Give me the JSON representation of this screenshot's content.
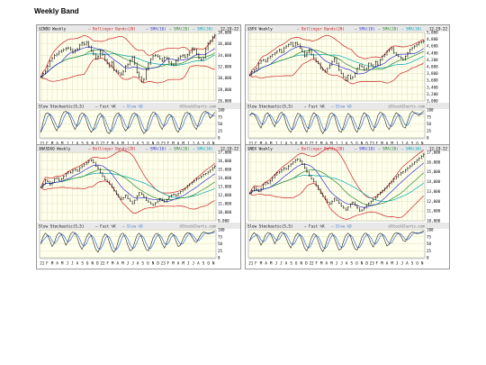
{
  "page": {
    "title": "Weekly Band"
  },
  "legend_labels": {
    "bollinger": "Bollinger Bands(20)",
    "sma10": "SMA(10)",
    "sma20": "SMA(20)",
    "sma30": "SMA(30)",
    "stoch_title": "Slow Stochastic(5,5)",
    "fast": "Fast %K",
    "slow": "Slow %D",
    "watermark": "©StockCharts.com"
  },
  "colors": {
    "price": "#000000",
    "sma10": "#3333cc",
    "sma20": "#2a8a2a",
    "sma30": "#00a8b0",
    "band": "#cc2222",
    "fast": "#222222",
    "slow": "#4a7fd0",
    "bg": "#ffffee",
    "grid": "#d8d8b0"
  },
  "chart_data": [
    {
      "type": "line",
      "symbol": "$INDU Weekly",
      "date": "12-19-22",
      "ylim": [
        26000,
        38000
      ],
      "yticks": [
        26000,
        28000,
        30000,
        32000,
        34000,
        36000,
        38000
      ],
      "ytick_labels": [
        "26,000",
        "28,000",
        "30,000",
        "32,000",
        "34,000",
        "36,000",
        "38,000"
      ],
      "xtick_labels": [
        "21",
        "F",
        "M",
        "A",
        "M",
        "J",
        "J",
        "A",
        "S",
        "O",
        "N",
        "D",
        "22",
        "F",
        "M",
        "A",
        "M",
        "J",
        "J",
        "A",
        "S",
        "O",
        "N",
        "D",
        "23",
        "F",
        "M",
        "A",
        "M",
        "J",
        "J",
        "A",
        "S",
        "O",
        "N"
      ],
      "series": [
        {
          "values": [
            30200,
            30800,
            31200,
            32100,
            33000,
            33500,
            34000,
            34200,
            34600,
            34800,
            35000,
            35200,
            35300,
            35000,
            34500,
            34900,
            35100,
            35800,
            36200,
            35900,
            36300,
            35500,
            34800,
            34200,
            33400,
            33800,
            34800,
            34100,
            33200,
            32600,
            32000,
            32800,
            31400,
            31200,
            30900,
            30600,
            31200,
            32100,
            32400,
            33100,
            33700,
            32500,
            31000,
            30200,
            29400,
            29800,
            31500,
            32500,
            33300,
            33900,
            34000,
            33800,
            33400,
            33000,
            33600,
            33500,
            32800,
            32400,
            32300,
            33000,
            33500,
            33800,
            34000,
            33700,
            34100,
            34500,
            35200,
            35000,
            34200,
            33500,
            33200,
            33600,
            35100,
            36100,
            36500,
            37200,
            37500
          ]
        }
      ],
      "stochastic": {
        "ylim": [
          0,
          100
        ],
        "yticks": [
          0,
          25,
          50,
          75,
          100
        ],
        "fast": [
          20,
          55,
          85,
          90,
          82,
          60,
          40,
          25,
          45,
          75,
          92,
          95,
          88,
          70,
          45,
          30,
          50,
          80,
          90,
          85,
          60,
          35,
          20,
          30,
          55,
          80,
          88,
          75,
          45,
          20,
          15,
          35,
          70,
          85,
          90,
          70,
          40,
          25,
          35,
          65,
          85,
          90,
          80,
          55,
          30,
          15,
          25,
          55,
          80,
          92,
          90,
          70,
          45,
          30,
          50,
          75,
          85,
          80,
          55,
          30,
          20,
          40,
          70,
          88,
          92,
          85,
          60,
          40,
          30,
          55,
          80,
          92,
          95,
          88,
          70,
          80,
          92
        ]
      }
    },
    {
      "type": "line",
      "symbol": "$SPX Weekly",
      "date": "12-19-22",
      "ylim": [
        3000,
        5000
      ],
      "yticks": [
        3000,
        3200,
        3400,
        3600,
        3800,
        4000,
        4200,
        4400,
        4600,
        4800,
        5000
      ],
      "ytick_labels": [
        "3,000",
        "3,200",
        "3,400",
        "3,600",
        "3,800",
        "4,000",
        "4,200",
        "4,400",
        "4,600",
        "4,800",
        "5,000"
      ],
      "xtick_labels": [
        "21",
        "F",
        "M",
        "A",
        "M",
        "J",
        "J",
        "A",
        "S",
        "O",
        "N",
        "D",
        "22",
        "F",
        "M",
        "A",
        "M",
        "J",
        "J",
        "A",
        "S",
        "O",
        "N",
        "D",
        "23",
        "F",
        "M",
        "A",
        "M",
        "J",
        "J",
        "A",
        "S",
        "O",
        "N"
      ],
      "series": [
        {
          "values": [
            3750,
            3850,
            3900,
            3950,
            4100,
            4180,
            4200,
            4150,
            4250,
            4300,
            4350,
            4400,
            4450,
            4500,
            4420,
            4550,
            4600,
            4650,
            4700,
            4600,
            4700,
            4650,
            4550,
            4450,
            4300,
            4400,
            4500,
            4350,
            4250,
            4150,
            4100,
            3950,
            3900,
            3850,
            3950,
            4050,
            4150,
            4250,
            4100,
            3900,
            3800,
            3700,
            3600,
            3750,
            3650,
            3700,
            3800,
            3950,
            4050,
            4000,
            3900,
            3950,
            4100,
            4050,
            4000,
            4150,
            4050,
            4200,
            4300,
            4350,
            4450,
            4500,
            4550,
            4400,
            4350,
            4300,
            4250,
            4200,
            4300,
            4400,
            4500,
            4550,
            4600,
            4650,
            4700,
            4720,
            4750
          ]
        }
      ],
      "stochastic": {
        "ylim": [
          0,
          100
        ],
        "yticks": [
          0,
          25,
          50,
          75,
          100
        ],
        "fast": [
          80,
          90,
          85,
          70,
          50,
          35,
          60,
          85,
          90,
          75,
          55,
          40,
          65,
          85,
          92,
          80,
          50,
          30,
          20,
          40,
          70,
          88,
          85,
          60,
          35,
          20,
          45,
          75,
          90,
          85,
          60,
          30,
          15,
          30,
          60,
          85,
          90,
          80,
          50,
          25,
          20,
          40,
          70,
          88,
          80,
          55,
          30,
          20,
          45,
          75,
          90,
          85,
          60,
          35,
          25,
          50,
          80,
          92,
          88,
          65,
          40,
          30,
          50,
          75,
          90,
          85,
          60,
          40,
          35,
          60,
          85,
          95,
          90,
          85,
          80,
          90,
          95
        ]
      }
    },
    {
      "type": "line",
      "symbol": "$NASDAQ Weekly",
      "date": "12-19-22",
      "ylim": [
        9000,
        17000
      ],
      "yticks": [
        9000,
        10000,
        11000,
        12000,
        13000,
        14000,
        15000,
        16000,
        17000
      ],
      "ytick_labels": [
        "9,000",
        "10,000",
        "11,000",
        "12,000",
        "13,000",
        "14,000",
        "15,000",
        "16,000",
        "17,000"
      ],
      "xtick_labels": [
        "21",
        "F",
        "M",
        "A",
        "M",
        "J",
        "J",
        "A",
        "S",
        "O",
        "N",
        "D",
        "22",
        "F",
        "M",
        "A",
        "M",
        "J",
        "J",
        "A",
        "S",
        "O",
        "N",
        "D",
        "23",
        "F",
        "M",
        "A",
        "M",
        "J",
        "J",
        "A",
        "S",
        "O",
        "N"
      ],
      "series": [
        {
          "values": [
            12900,
            13300,
            13800,
            13600,
            13200,
            13500,
            13900,
            14000,
            13700,
            13900,
            14200,
            14500,
            14700,
            14600,
            14900,
            15000,
            14800,
            15200,
            15400,
            15600,
            15800,
            16000,
            16100,
            15800,
            15400,
            15100,
            14600,
            14200,
            13800,
            13600,
            13300,
            12900,
            12500,
            12100,
            11800,
            11500,
            11700,
            12000,
            11600,
            11300,
            11000,
            11400,
            11900,
            12300,
            12100,
            11800,
            11400,
            11200,
            11000,
            10800,
            11100,
            11300,
            11600,
            11400,
            11200,
            11500,
            11800,
            12000,
            12100,
            11900,
            12200,
            12400,
            12600,
            12800,
            13100,
            13300,
            13500,
            13700,
            13900,
            14000,
            14200,
            14400,
            14500,
            14700,
            14900,
            15200,
            15400
          ]
        }
      ],
      "stochastic": {
        "ylim": [
          0,
          100
        ],
        "yticks": [
          0,
          25,
          50,
          75,
          100
        ],
        "fast": [
          50,
          75,
          88,
          80,
          60,
          40,
          55,
          80,
          90,
          85,
          65,
          45,
          60,
          85,
          92,
          88,
          70,
          45,
          30,
          50,
          75,
          88,
          80,
          55,
          30,
          20,
          40,
          70,
          85,
          80,
          55,
          30,
          20,
          35,
          65,
          85,
          88,
          70,
          45,
          25,
          30,
          55,
          80,
          88,
          75,
          50,
          30,
          25,
          45,
          70,
          85,
          88,
          72,
          50,
          35,
          55,
          78,
          88,
          82,
          60,
          40,
          45,
          65,
          82,
          90,
          88,
          75,
          60,
          55,
          70,
          85,
          92,
          90,
          85,
          88,
          92,
          95
        ]
      }
    },
    {
      "type": "line",
      "symbol": "$NDX Weekly",
      "date": "12-19-22",
      "ylim": [
        10000,
        17000
      ],
      "yticks": [
        10000,
        11000,
        12000,
        13000,
        14000,
        15000,
        16000,
        17000
      ],
      "ytick_labels": [
        "10,000",
        "11,000",
        "12,000",
        "13,000",
        "14,000",
        "15,000",
        "16,000",
        "17,000"
      ],
      "xtick_labels": [
        "21",
        "F",
        "M",
        "A",
        "M",
        "J",
        "J",
        "A",
        "S",
        "O",
        "N",
        "D",
        "22",
        "F",
        "M",
        "A",
        "M",
        "J",
        "J",
        "A",
        "S",
        "O",
        "N",
        "D",
        "23",
        "F",
        "M",
        "A",
        "M",
        "J",
        "J",
        "A",
        "S",
        "O",
        "N"
      ],
      "series": [
        {
          "values": [
            12800,
            13100,
            13400,
            13200,
            13000,
            13300,
            13700,
            13900,
            13800,
            14100,
            14400,
            14700,
            14900,
            15000,
            15200,
            15400,
            15300,
            15600,
            15800,
            16000,
            16200,
            16300,
            16100,
            15800,
            15400,
            15000,
            14600,
            14300,
            14000,
            13600,
            13200,
            12800,
            12500,
            12200,
            11900,
            11700,
            12000,
            12300,
            12100,
            11800,
            11500,
            11300,
            11100,
            11400,
            11700,
            11900,
            11600,
            11300,
            11000,
            11100,
            11300,
            11600,
            11800,
            12000,
            12200,
            12400,
            12700,
            12900,
            13100,
            13300,
            13500,
            13800,
            14000,
            14300,
            14500,
            14700,
            14900,
            15000,
            15200,
            15400,
            15600,
            15800,
            16000,
            16200,
            16400,
            16600,
            16800
          ]
        }
      ],
      "stochastic": {
        "ylim": [
          0,
          100
        ],
        "yticks": [
          0,
          25,
          50,
          75,
          100
        ],
        "fast": [
          60,
          80,
          90,
          82,
          65,
          45,
          60,
          82,
          90,
          88,
          70,
          50,
          65,
          85,
          92,
          88,
          70,
          50,
          35,
          55,
          78,
          88,
          82,
          60,
          35,
          25,
          45,
          72,
          86,
          82,
          60,
          35,
          22,
          40,
          68,
          85,
          88,
          72,
          48,
          28,
          32,
          58,
          80,
          88,
          78,
          52,
          32,
          28,
          48,
          72,
          86,
          88,
          74,
          52,
          38,
          58,
          80,
          88,
          84,
          62,
          42,
          48,
          68,
          84,
          90,
          88,
          78,
          62,
          58,
          72,
          86,
          92,
          90,
          86,
          88,
          92,
          96
        ]
      }
    }
  ]
}
